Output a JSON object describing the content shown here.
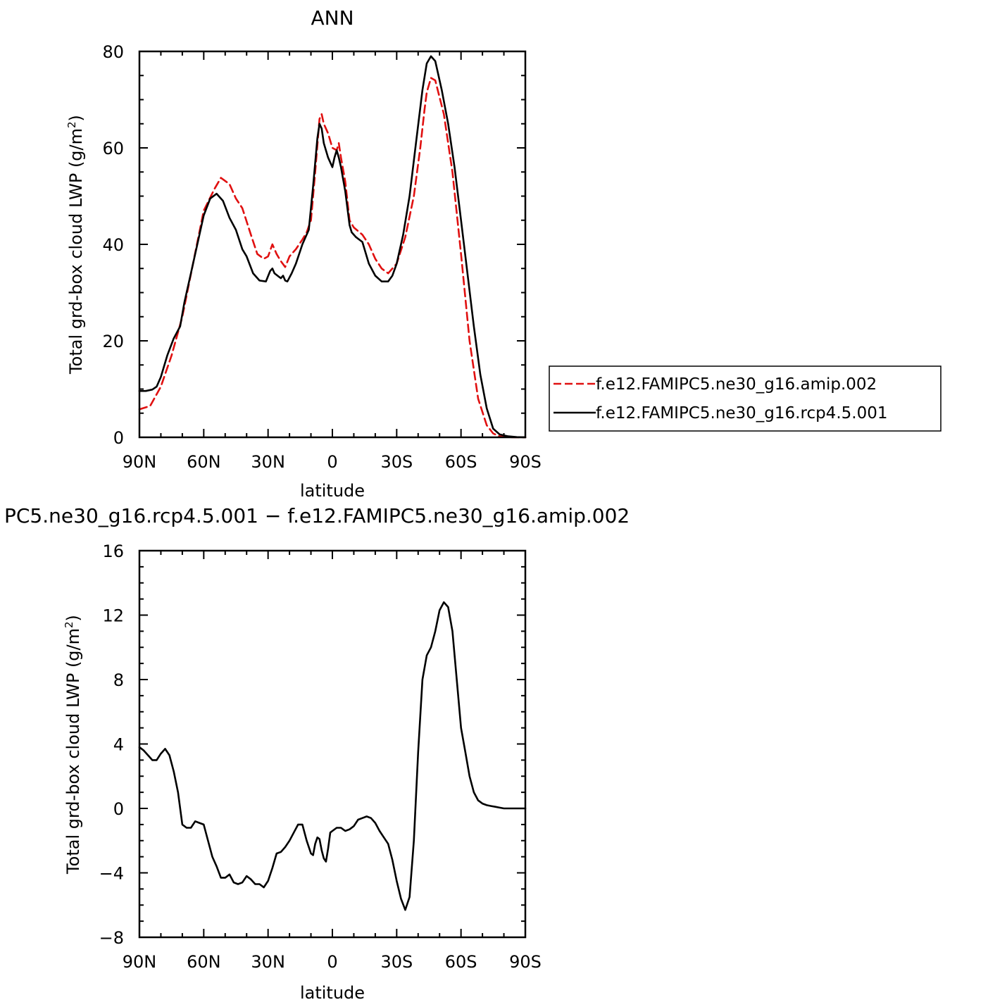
{
  "chart_data": [
    {
      "type": "line",
      "title": "ANN",
      "xlabel": "latitude",
      "ylabel": "Total grd-box cloud LWP (g/m²)",
      "ylabel_parts": {
        "main": "Total grd-box cloud LWP (g/m",
        "sup": "2",
        "close": ")"
      },
      "xlim": [
        90,
        -90
      ],
      "ylim": [
        0,
        80
      ],
      "x_ticks": [
        90,
        60,
        30,
        0,
        -30,
        -60,
        -90
      ],
      "x_tick_labels": [
        "90N",
        "60N",
        "30N",
        "0",
        "30S",
        "60S",
        "90S"
      ],
      "y_ticks": [
        0,
        20,
        40,
        60,
        80
      ],
      "y_tick_labels": [
        "0",
        "20",
        "40",
        "60",
        "80"
      ],
      "legend_position": "right",
      "series": [
        {
          "name": "f.e12.FAMIPC5.ne30_g16.amip.002",
          "color": "#e01010",
          "dash": "dashed",
          "x": [
            90,
            85,
            80,
            75,
            70,
            65,
            60,
            55,
            52,
            48,
            45,
            42,
            38,
            35,
            32,
            30,
            28,
            26,
            24,
            22,
            20,
            17,
            14,
            12,
            10,
            8,
            6,
            5,
            4,
            2,
            0,
            -2,
            -3,
            -4,
            -6,
            -8,
            -10,
            -14,
            -17,
            -20,
            -23,
            -26,
            -30,
            -34,
            -38,
            -41,
            -43,
            -44,
            -46,
            -48,
            -52,
            -56,
            -60,
            -64,
            -68,
            -72,
            -75,
            -78,
            -82,
            -85,
            -90
          ],
          "y": [
            5.8,
            6.5,
            10.5,
            17,
            25,
            36,
            47,
            51.5,
            53.8,
            52.5,
            49.5,
            47.5,
            42,
            38,
            37,
            37.5,
            40,
            38,
            36.5,
            35.3,
            37.5,
            39,
            41,
            42.5,
            45,
            55,
            66,
            67,
            65,
            63,
            60,
            59.5,
            61,
            58,
            53,
            45,
            43.5,
            42,
            40,
            37,
            35,
            34,
            36,
            41.5,
            50,
            60,
            68,
            71.5,
            74.5,
            74,
            67,
            55,
            38,
            20,
            8,
            2.5,
            0.8,
            0.2,
            0.05,
            0.0,
            0.0
          ]
        },
        {
          "name": "f.e12.FAMIPC5.ne30_g16.rcp4.5.001",
          "color": "#000000",
          "dash": "solid",
          "x": [
            90,
            87,
            84,
            82,
            80,
            77,
            74,
            71,
            69,
            66,
            63,
            60,
            57,
            54,
            51,
            48,
            45,
            42,
            40,
            37,
            34,
            31,
            29,
            28,
            27,
            25,
            24,
            23,
            22,
            21,
            19,
            17,
            14,
            11,
            9,
            7,
            6,
            5,
            4,
            2,
            0,
            -1,
            -2,
            -3,
            -4,
            -6,
            -8,
            -9,
            -11,
            -14,
            -17,
            -20,
            -23,
            -26,
            -28,
            -30,
            -33,
            -36,
            -39,
            -42,
            -44,
            -46,
            -48,
            -51,
            -54,
            -57,
            -60,
            -63,
            -66,
            -69,
            -72,
            -75,
            -78,
            -82,
            -86,
            -90
          ],
          "y": [
            9.6,
            9.6,
            9.9,
            10.5,
            12.5,
            17,
            20.5,
            23,
            28,
            34,
            40,
            46,
            49.5,
            50.5,
            49,
            45.5,
            43,
            39,
            37.5,
            34,
            32.5,
            32.3,
            34.5,
            35,
            34,
            33.3,
            33,
            33.5,
            32.5,
            32.3,
            34,
            36,
            40,
            43,
            52,
            62,
            65,
            64,
            61,
            58,
            56,
            58,
            59.5,
            58,
            56,
            51,
            44,
            42.5,
            41.5,
            40.5,
            36,
            33.5,
            32.3,
            32.3,
            33.5,
            36,
            42,
            50,
            61,
            72,
            77.5,
            79,
            78,
            72,
            65,
            56,
            45,
            34,
            23,
            13,
            6,
            1.8,
            0.6,
            0.2,
            0.05,
            0.0
          ]
        }
      ]
    },
    {
      "type": "line",
      "title": "PC5.ne30_g16.rcp4.5.001 − f.e12.FAMIPC5.ne30_g16.amip.002",
      "xlabel": "latitude",
      "ylabel": "Total grd-box cloud LWP (g/m²)",
      "ylabel_parts": {
        "main": "Total grd-box cloud LWP (g/m",
        "sup": "2",
        "close": ")"
      },
      "xlim": [
        90,
        -90
      ],
      "ylim": [
        -8,
        16
      ],
      "x_ticks": [
        90,
        60,
        30,
        0,
        -30,
        -60,
        -90
      ],
      "x_tick_labels": [
        "90N",
        "60N",
        "30N",
        "0",
        "30S",
        "60S",
        "90S"
      ],
      "y_ticks": [
        -8,
        -4,
        0,
        4,
        8,
        12,
        16
      ],
      "y_tick_labels": [
        "−8",
        "−4",
        "0",
        "4",
        "8",
        "12",
        "16"
      ],
      "series": [
        {
          "color": "#000000",
          "dash": "solid",
          "x": [
            90,
            88,
            86,
            84,
            82,
            80,
            78,
            76,
            74,
            72,
            70,
            68,
            66,
            64,
            62,
            60,
            58,
            56,
            54,
            52,
            50,
            48,
            46,
            44,
            42,
            40,
            38,
            36,
            34,
            32,
            30,
            28,
            26,
            24,
            22,
            20,
            18,
            16,
            14,
            12,
            10,
            9,
            8,
            7,
            6,
            5,
            4,
            3,
            2,
            1,
            0,
            -2,
            -4,
            -6,
            -8,
            -10,
            -12,
            -14,
            -16,
            -18,
            -20,
            -22,
            -24,
            -26,
            -28,
            -30,
            -32,
            -34,
            -36,
            -38,
            -40,
            -42,
            -44,
            -46,
            -48,
            -50,
            -52,
            -54,
            -56,
            -58,
            -60,
            -62,
            -64,
            -66,
            -68,
            -70,
            -72,
            -74,
            -76,
            -78,
            -80,
            -82,
            -84,
            -86,
            -88,
            -90
          ],
          "y": [
            3.8,
            3.6,
            3.3,
            3.0,
            3.0,
            3.4,
            3.7,
            3.3,
            2.3,
            1.0,
            -1.0,
            -1.2,
            -1.2,
            -0.8,
            -0.9,
            -1.0,
            -2.0,
            -3.0,
            -3.6,
            -4.3,
            -4.3,
            -4.1,
            -4.6,
            -4.7,
            -4.6,
            -4.2,
            -4.4,
            -4.7,
            -4.7,
            -4.9,
            -4.5,
            -3.7,
            -2.8,
            -2.7,
            -2.4,
            -2.0,
            -1.5,
            -1.0,
            -1.0,
            -2.0,
            -2.8,
            -2.9,
            -2.2,
            -1.8,
            -1.9,
            -2.6,
            -3.1,
            -3.3,
            -2.5,
            -1.5,
            -1.4,
            -1.2,
            -1.2,
            -1.4,
            -1.3,
            -1.1,
            -0.7,
            -0.6,
            -0.5,
            -0.6,
            -0.9,
            -1.4,
            -1.8,
            -2.2,
            -3.2,
            -4.5,
            -5.6,
            -6.3,
            -5.5,
            -2.0,
            3.5,
            8.0,
            9.5,
            10.0,
            11.0,
            12.3,
            12.8,
            12.5,
            11.0,
            8.0,
            5.0,
            3.5,
            2.0,
            1.0,
            0.5,
            0.3,
            0.2,
            0.15,
            0.1,
            0.05,
            0.0,
            0.0,
            0.0,
            0.0,
            0.0,
            0.0
          ]
        }
      ]
    }
  ]
}
